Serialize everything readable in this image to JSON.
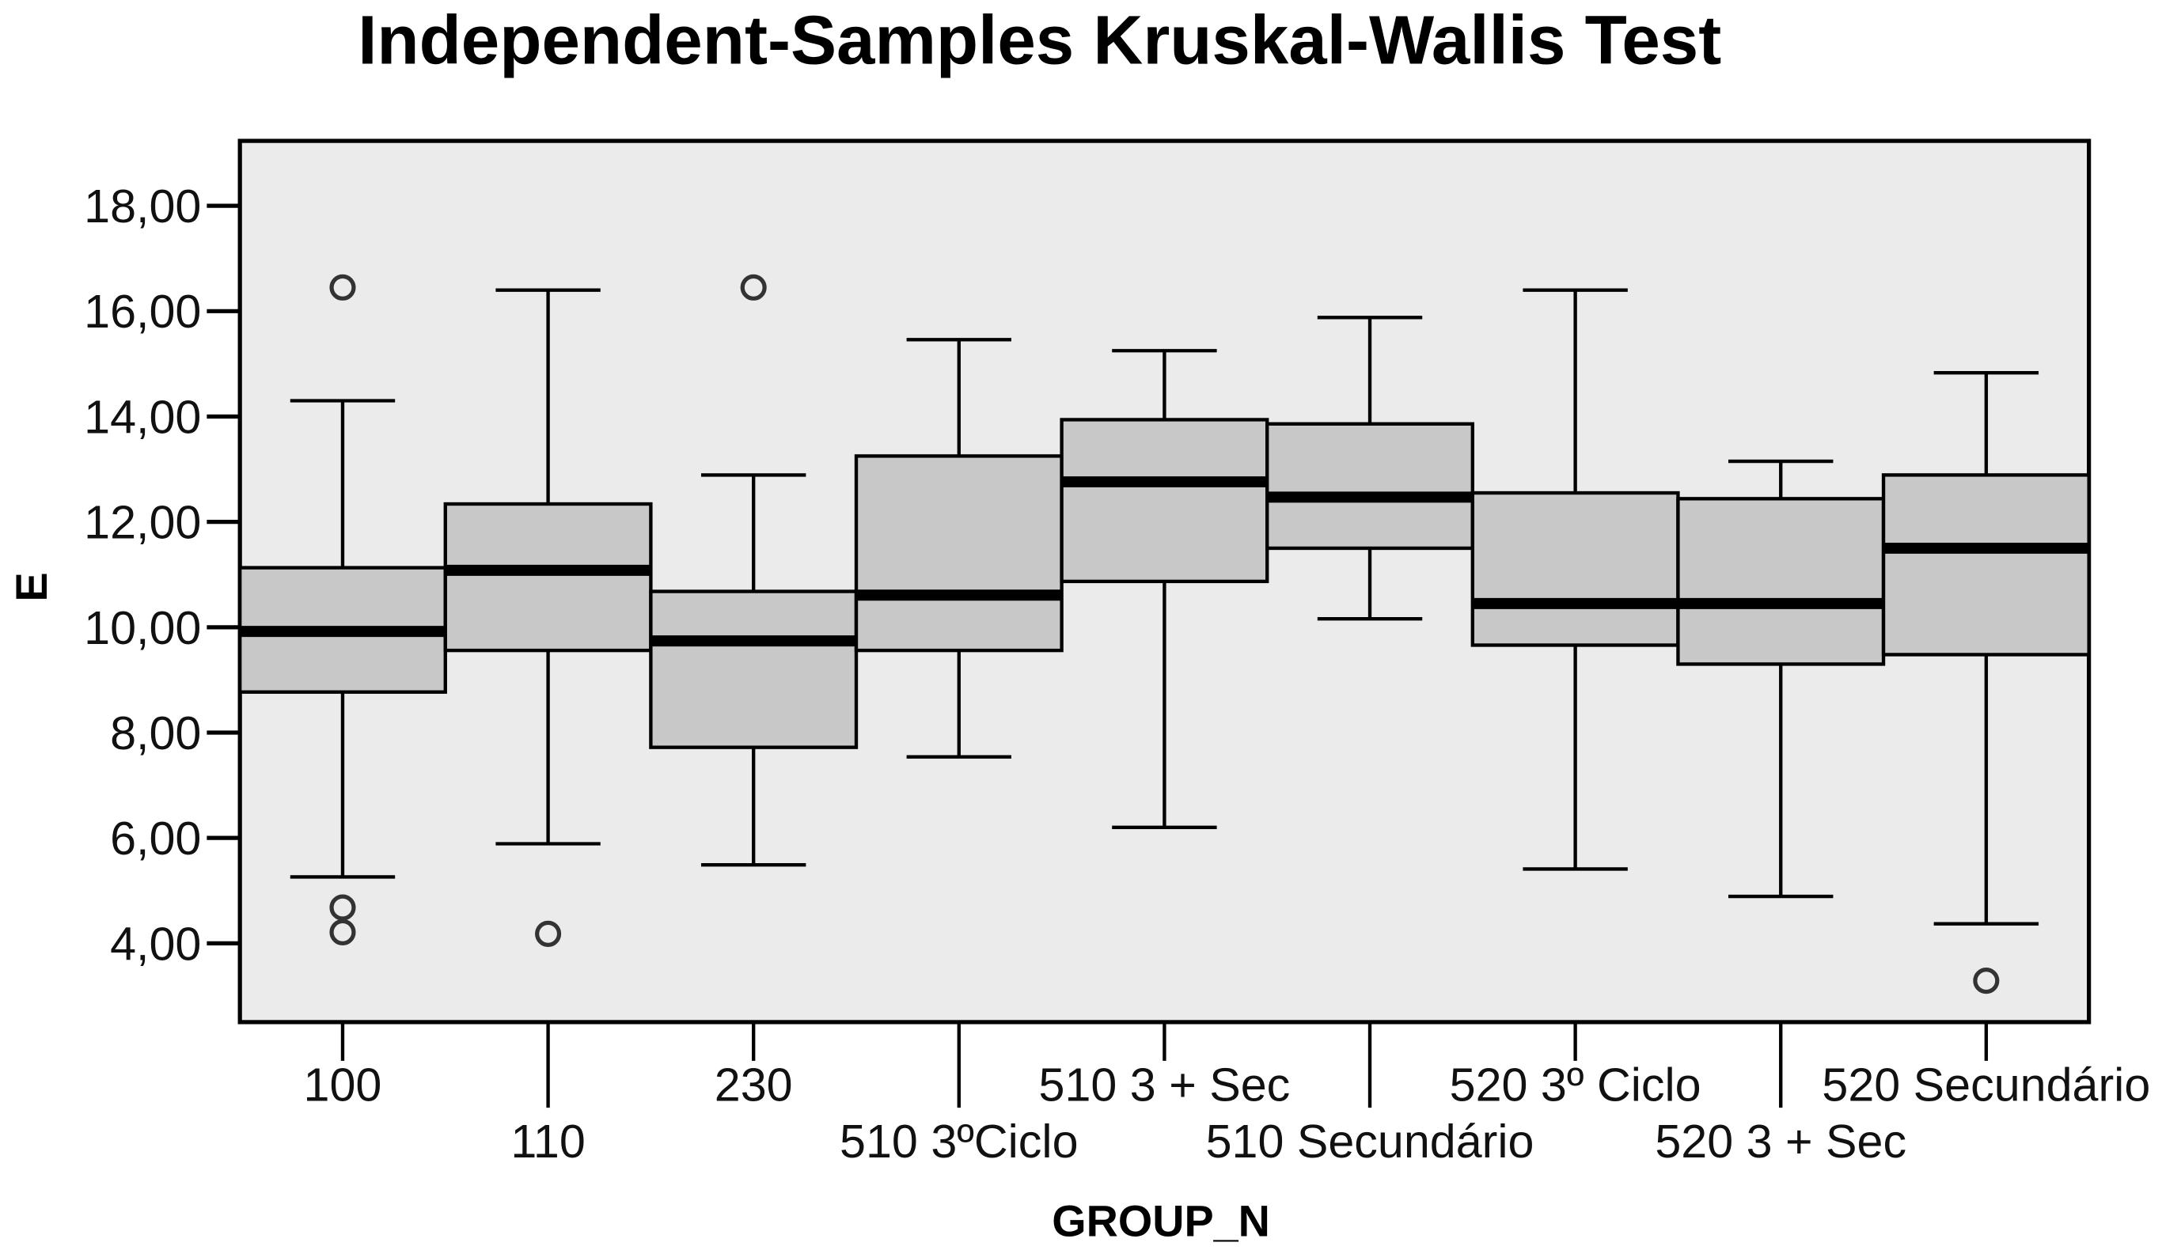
{
  "chart_data": {
    "type": "boxplot",
    "title": "Independent-Samples Kruskal-Wallis Test",
    "xlabel": "GROUP_N",
    "ylabel": "E",
    "ylim": [
      2.6,
      19.2
    ],
    "yticks": [
      4,
      6,
      8,
      10,
      12,
      14,
      16,
      18
    ],
    "ytick_labels": [
      "4,00",
      "6,00",
      "8,00",
      "10,00",
      "12,00",
      "14,00",
      "16,00",
      "18,00"
    ],
    "grid": false,
    "colors": {
      "plot_bg": "#ebebeb",
      "box_fill": "#c8c8c8",
      "line": "#000000"
    },
    "categories": [
      "100",
      "110",
      "230",
      "510 3ºCiclo",
      "510 3 + Sec",
      "510 Secundário",
      "520 3º Ciclo",
      "520 3 + Sec",
      "520 Secundário"
    ],
    "boxes": [
      {
        "whisker_low": 5.26,
        "q1": 8.77,
        "median": 9.92,
        "q3": 11.13,
        "whisker_high": 14.3,
        "outliers": [
          16.45,
          4.68,
          4.21
        ]
      },
      {
        "whisker_low": 5.89,
        "q1": 9.56,
        "median": 11.08,
        "q3": 12.34,
        "whisker_high": 16.4,
        "outliers": [
          4.18
        ]
      },
      {
        "whisker_low": 5.49,
        "q1": 7.72,
        "median": 9.74,
        "q3": 10.68,
        "whisker_high": 12.89,
        "outliers": [
          16.45
        ]
      },
      {
        "whisker_low": 7.54,
        "q1": 9.56,
        "median": 10.61,
        "q3": 13.25,
        "whisker_high": 15.46,
        "outliers": []
      },
      {
        "whisker_low": 6.2,
        "q1": 10.87,
        "median": 12.76,
        "q3": 13.94,
        "whisker_high": 15.25,
        "outliers": []
      },
      {
        "whisker_low": 10.16,
        "q1": 11.5,
        "median": 12.47,
        "q3": 13.86,
        "whisker_high": 15.88,
        "outliers": []
      },
      {
        "whisker_low": 5.41,
        "q1": 9.66,
        "median": 10.45,
        "q3": 12.55,
        "whisker_high": 16.4,
        "outliers": []
      },
      {
        "whisker_low": 4.89,
        "q1": 9.3,
        "median": 10.45,
        "q3": 12.44,
        "whisker_high": 13.15,
        "outliers": []
      },
      {
        "whisker_low": 4.37,
        "q1": 9.48,
        "median": 11.5,
        "q3": 12.89,
        "whisker_high": 14.83,
        "outliers": [
          3.29
        ]
      }
    ]
  }
}
